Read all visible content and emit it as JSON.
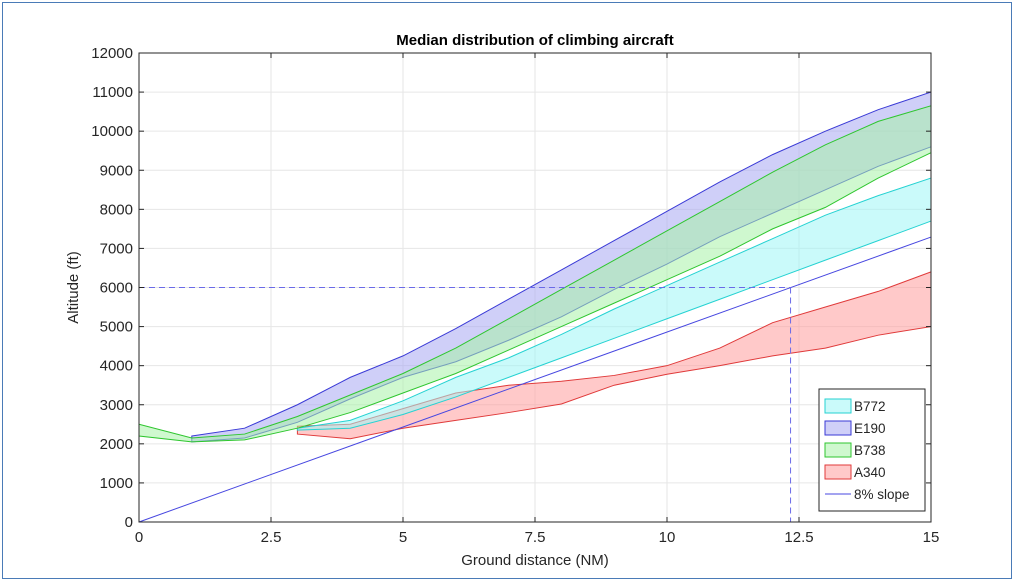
{
  "chart_data": {
    "type": "area",
    "title": "Median distribution of climbing aircraft",
    "xlabel": "Ground distance (NM)",
    "ylabel": "Altitude (ft)",
    "xlim": [
      0,
      15
    ],
    "ylim": [
      0,
      12000
    ],
    "xticks": [
      0,
      2.5,
      5,
      7.5,
      10,
      12.5,
      15
    ],
    "xtick_labels": [
      "0",
      "2.5",
      "5",
      "7.5",
      "10",
      "12.5",
      "15"
    ],
    "yticks": [
      0,
      1000,
      2000,
      3000,
      4000,
      5000,
      6000,
      7000,
      8000,
      9000,
      10000,
      11000,
      12000
    ],
    "ytick_labels": [
      "0",
      "1000",
      "2000",
      "3000",
      "4000",
      "5000",
      "6000",
      "7000",
      "8000",
      "9000",
      "10000",
      "11000",
      "12000"
    ],
    "grid": true,
    "legend_position": "bottom-right",
    "series": [
      {
        "name": "A340",
        "kind": "band",
        "fill": "#ff9c9c",
        "stroke": "#e03a3a",
        "x": [
          3,
          4,
          5,
          6,
          7,
          8,
          9,
          10,
          11,
          12,
          13,
          14,
          15
        ],
        "lower": [
          2250,
          2130,
          2400,
          2600,
          2800,
          3020,
          3500,
          3780,
          4000,
          4250,
          4450,
          4780,
          5000
        ],
        "upper": [
          2450,
          2500,
          2900,
          3300,
          3500,
          3600,
          3750,
          4000,
          4450,
          5100,
          5500,
          5900,
          6400
        ]
      },
      {
        "name": "B772",
        "kind": "band",
        "fill": "#9ef6f6",
        "stroke": "#25d2d2",
        "x": [
          3,
          4,
          5,
          6,
          7,
          8,
          9,
          10,
          11,
          12,
          13,
          14,
          15
        ],
        "lower": [
          2350,
          2400,
          2750,
          3200,
          3700,
          4200,
          4700,
          5200,
          5700,
          6200,
          6700,
          7200,
          7700
        ],
        "upper": [
          2400,
          2600,
          3100,
          3700,
          4200,
          4800,
          5450,
          6050,
          6650,
          7250,
          7850,
          8350,
          8800
        ]
      },
      {
        "name": "E190",
        "kind": "band",
        "fill": "#a8a8f2",
        "stroke": "#3a3ad6",
        "x": [
          1,
          2,
          3,
          4,
          5,
          6,
          7,
          8,
          9,
          10,
          11,
          12,
          13,
          14,
          15
        ],
        "lower": [
          2050,
          2150,
          2550,
          3150,
          3700,
          4100,
          4650,
          5250,
          5950,
          6600,
          7300,
          7900,
          8500,
          9100,
          9600
        ],
        "upper": [
          2200,
          2400,
          3000,
          3700,
          4250,
          4950,
          5700,
          6450,
          7200,
          7950,
          8700,
          9400,
          10000,
          10550,
          11000
        ]
      },
      {
        "name": "B738",
        "kind": "band",
        "fill": "#a8f2a8",
        "stroke": "#2fc62f",
        "x": [
          0,
          1,
          2,
          3,
          4,
          5,
          6,
          7,
          8,
          9,
          10,
          11,
          12,
          13,
          14,
          15
        ],
        "lower": [
          2200,
          2050,
          2100,
          2400,
          2800,
          3300,
          3800,
          4400,
          5000,
          5600,
          6200,
          6800,
          7500,
          8050,
          8800,
          9450
        ],
        "upper": [
          2500,
          2150,
          2250,
          2700,
          3250,
          3800,
          4450,
          5200,
          5950,
          6700,
          7450,
          8200,
          8950,
          9650,
          10250,
          10650
        ]
      },
      {
        "name": "8% slope",
        "kind": "line",
        "stroke": "#4747e0",
        "x": [
          0,
          15
        ],
        "y": [
          0,
          7290
        ]
      }
    ],
    "reference_lines": [
      {
        "kind": "dashed",
        "x": [
          0,
          12.34
        ],
        "y": [
          6000,
          6000
        ],
        "stroke": "#6a6ae8"
      },
      {
        "kind": "dashed",
        "x": [
          12.34,
          12.34
        ],
        "y": [
          6000,
          0
        ],
        "stroke": "#6a6ae8"
      }
    ],
    "legend_order": [
      "B772",
      "E190",
      "B738",
      "A340",
      "8% slope"
    ]
  }
}
